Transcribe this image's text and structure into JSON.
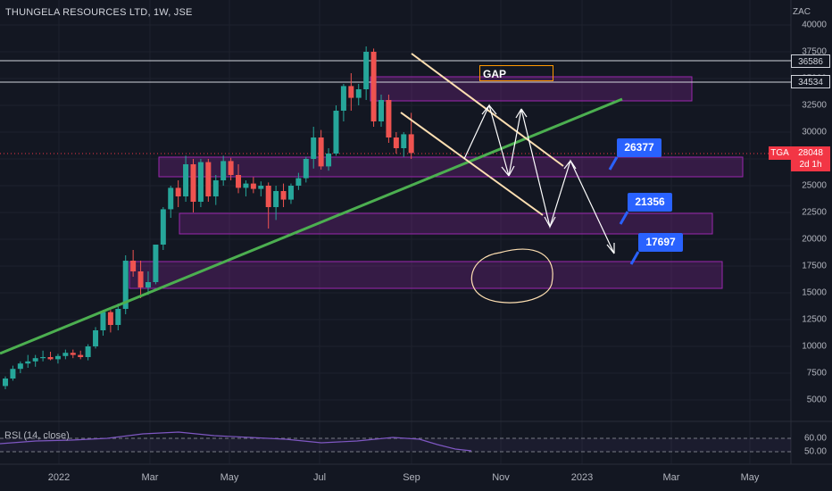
{
  "header": {
    "title": "THUNGELA RESOURCES LTD, 1W, JSE",
    "currency": "ZAC"
  },
  "price_labels": {
    "upper_line": "36586",
    "lower_line": "34534",
    "symbol": "TGA",
    "last": "28048",
    "countdown": "2d 1h"
  },
  "annotations": {
    "gap": "GAP",
    "target1": "26377",
    "target2": "21356",
    "target3": "17697"
  },
  "rsi": {
    "label": "RSI (14, close)",
    "ticks": [
      "60.00",
      "50.00"
    ]
  },
  "colors": {
    "up": "#26a69a",
    "down": "#ef5350",
    "trend": "#4caf50",
    "zone": "#9c27b0",
    "channel": "#ffe0b2",
    "target": "#2962ff"
  },
  "chart_data": {
    "type": "candlestick",
    "title": "THUNGELA RESOURCES LTD, 1W, JSE",
    "y_axis": {
      "unit": "ZAC",
      "range": [
        4000,
        40000
      ],
      "ticks": [
        5000,
        7500,
        10000,
        12500,
        15000,
        17500,
        20000,
        22500,
        25000,
        27500,
        30000,
        32500,
        35000,
        37500,
        40000
      ]
    },
    "x_ticks": [
      "2022",
      "Mar",
      "May",
      "Jul",
      "Sep",
      "Nov",
      "2023",
      "Mar",
      "May"
    ],
    "candles": [
      [
        6300,
        7200,
        6000,
        7000
      ],
      [
        7000,
        8200,
        6800,
        7900
      ],
      [
        7900,
        8600,
        7500,
        8400
      ],
      [
        8400,
        9200,
        8000,
        8600
      ],
      [
        8600,
        9200,
        8100,
        8900
      ],
      [
        8900,
        9600,
        8600,
        9000
      ],
      [
        9000,
        9500,
        8700,
        8800
      ],
      [
        8800,
        9300,
        8400,
        9100
      ],
      [
        9100,
        9700,
        8800,
        9400
      ],
      [
        9400,
        9700,
        8900,
        9200
      ],
      [
        9200,
        9600,
        8800,
        9000
      ],
      [
        9000,
        10200,
        8700,
        10000
      ],
      [
        10000,
        11800,
        9800,
        11500
      ],
      [
        11500,
        13400,
        11000,
        13200
      ],
      [
        13200,
        13400,
        11300,
        12000
      ],
      [
        12000,
        14000,
        11500,
        13500
      ],
      [
        13500,
        18500,
        13000,
        18000
      ],
      [
        18000,
        19000,
        16500,
        17000
      ],
      [
        17000,
        18000,
        14500,
        15500
      ],
      [
        15500,
        17000,
        14800,
        16000
      ],
      [
        16000,
        19500,
        15800,
        19500
      ],
      [
        19500,
        23000,
        19000,
        22800
      ],
      [
        22800,
        25000,
        22000,
        24800
      ],
      [
        24800,
        25500,
        23000,
        24000
      ],
      [
        24000,
        27800,
        23500,
        27000
      ],
      [
        27000,
        27500,
        22500,
        23500
      ],
      [
        23500,
        27500,
        23000,
        27200
      ],
      [
        27200,
        27500,
        23500,
        24000
      ],
      [
        24000,
        26000,
        23200,
        25500
      ],
      [
        25500,
        27800,
        25000,
        27300
      ],
      [
        27300,
        27600,
        25500,
        26000
      ],
      [
        26000,
        27000,
        24300,
        24800
      ],
      [
        24800,
        25500,
        24000,
        25200
      ],
      [
        25200,
        25800,
        24300,
        24700
      ],
      [
        24700,
        25400,
        24000,
        25000
      ],
      [
        25000,
        25300,
        21000,
        23000
      ],
      [
        23000,
        25000,
        21800,
        24500
      ],
      [
        24500,
        25200,
        23000,
        23700
      ],
      [
        23700,
        25200,
        23300,
        25000
      ],
      [
        25000,
        26200,
        24600,
        25700
      ],
      [
        25700,
        27700,
        25300,
        27500
      ],
      [
        27500,
        30500,
        26600,
        29500
      ],
      [
        29500,
        30200,
        26500,
        26800
      ],
      [
        26800,
        28500,
        26400,
        28000
      ],
      [
        28000,
        32500,
        27800,
        32000
      ],
      [
        32000,
        34500,
        31000,
        34300
      ],
      [
        34300,
        35500,
        32000,
        33200
      ],
      [
        33200,
        34500,
        32500,
        34000
      ],
      [
        34000,
        38000,
        33000,
        37500
      ],
      [
        37500,
        37800,
        30500,
        31000
      ],
      [
        31000,
        33500,
        30500,
        33000
      ],
      [
        33000,
        33500,
        29000,
        29500
      ],
      [
        29500,
        30000,
        28000,
        28500
      ],
      [
        28500,
        30000,
        27700,
        29800
      ],
      [
        29800,
        31800,
        27500,
        28048
      ]
    ]
  }
}
